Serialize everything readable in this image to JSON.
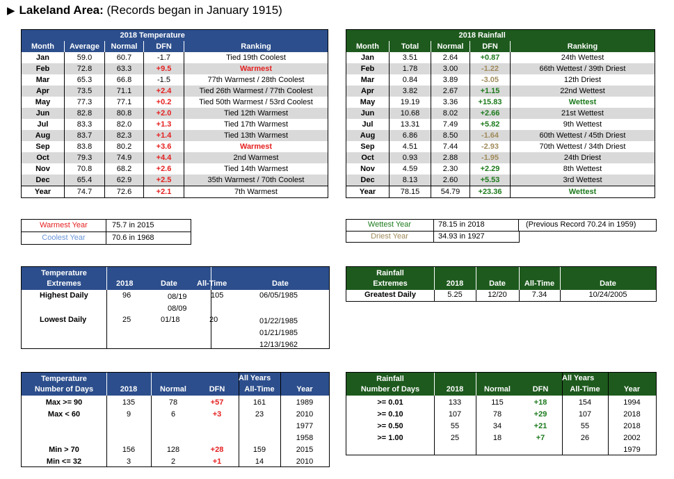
{
  "title": {
    "bold": "Lakeland Area:",
    "rest": " (Records began in January 1915)"
  },
  "temp": {
    "header": "2018 Temperature",
    "cols": [
      "Month",
      "Average",
      "Normal",
      "DFN",
      "Ranking"
    ],
    "rows": [
      [
        "Jan",
        "59.0",
        "60.7",
        "-1.7",
        "Tied 19th Coolest"
      ],
      [
        "Feb",
        "72.8",
        "63.3",
        "+9.5",
        "Warmest"
      ],
      [
        "Mar",
        "65.3",
        "66.8",
        "-1.5",
        "77th Warmest / 28th Coolest"
      ],
      [
        "Apr",
        "73.5",
        "71.1",
        "+2.4",
        "Tied 26th Warmest / 77th Coolest"
      ],
      [
        "May",
        "77.3",
        "77.1",
        "+0.2",
        "Tied 50th Warmest / 53rd Coolest"
      ],
      [
        "Jun",
        "82.8",
        "80.8",
        "+2.0",
        "Tied 12th Warmest"
      ],
      [
        "Jul",
        "83.3",
        "82.0",
        "+1.3",
        "Tied 17th Warmest"
      ],
      [
        "Aug",
        "83.7",
        "82.3",
        "+1.4",
        "Tied 13th Warmest"
      ],
      [
        "Sep",
        "83.8",
        "80.2",
        "+3.6",
        "Warmest"
      ],
      [
        "Oct",
        "79.3",
        "74.9",
        "+4.4",
        "2nd Warmest"
      ],
      [
        "Nov",
        "70.8",
        "68.2",
        "+2.6",
        "Tied 14th Warmest"
      ],
      [
        "Dec",
        "65.4",
        "62.9",
        "+2.5",
        "35th Warmest / 70th Coolest"
      ],
      [
        "Year",
        "74.7",
        "72.6",
        "+2.1",
        "7th Warmest"
      ]
    ]
  },
  "rain": {
    "header": "2018 Rainfall",
    "cols": [
      "Month",
      "Total",
      "Normal",
      "DFN",
      "Ranking"
    ],
    "rows": [
      [
        "Jan",
        "3.51",
        "2.64",
        "+0.87",
        "24th Wettest"
      ],
      [
        "Feb",
        "1.78",
        "3.00",
        "-1.22",
        "66th Wettest / 39th Driest"
      ],
      [
        "Mar",
        "0.84",
        "3.89",
        "-3.05",
        "12th Driest"
      ],
      [
        "Apr",
        "3.82",
        "2.67",
        "+1.15",
        "22nd Wettest"
      ],
      [
        "May",
        "19.19",
        "3.36",
        "+15.83",
        "Wettest"
      ],
      [
        "Jun",
        "10.68",
        "8.02",
        "+2.66",
        "21st Wettest"
      ],
      [
        "Jul",
        "13.31",
        "7.49",
        "+5.82",
        "9th Wettest"
      ],
      [
        "Aug",
        "6.86",
        "8.50",
        "-1.64",
        "60th Wettest / 45th Driest"
      ],
      [
        "Sep",
        "4.51",
        "7.44",
        "-2.93",
        "70th Wettest / 34th Driest"
      ],
      [
        "Oct",
        "0.93",
        "2.88",
        "-1.95",
        "24th Driest"
      ],
      [
        "Nov",
        "4.59",
        "2.30",
        "+2.29",
        "8th Wettest"
      ],
      [
        "Dec",
        "8.13",
        "2.60",
        "+5.53",
        "3rd Wettest"
      ],
      [
        "Year",
        "78.15",
        "54.79",
        "+23.36",
        "Wettest"
      ]
    ]
  },
  "tempyear": {
    "warm_label": "Warmest Year",
    "warm_val": "75.7 in 2015",
    "cool_label": "Coolest Year",
    "cool_val": "70.6 in 1968"
  },
  "rainyear": {
    "wet_label": "Wettest Year",
    "wet_val": "78.15 in 2018",
    "wet_note": "(Previous Record 70.24 in 1959)",
    "dry_label": "Driest Year",
    "dry_val": "34.93 in 1927"
  },
  "tempext": {
    "h1": "Temperature",
    "h2": "Extremes",
    "cols": [
      "2018",
      "Date",
      "All-Time",
      "Date"
    ],
    "high": {
      "label": "Highest Daily",
      "val": "96",
      "dates": [
        "08/19",
        "08/09"
      ],
      "at": "105",
      "atdates": [
        "06/05/1985"
      ]
    },
    "low": {
      "label": "Lowest Daily",
      "val": "25",
      "dates": [
        "01/18"
      ],
      "at": "20",
      "atdates": [
        "01/22/1985",
        "01/21/1985",
        "12/13/1962"
      ]
    }
  },
  "rainext": {
    "h1": "Rainfall",
    "h2": "Extremes",
    "cols": [
      "2018",
      "Date",
      "All-Time",
      "Date"
    ],
    "row": {
      "label": "Greatest Daily",
      "val": "5.25",
      "date": "12/20",
      "at": "7.34",
      "atdate": "10/24/2005"
    }
  },
  "tempdays": {
    "h1": "Temperature",
    "h2": "Number of Days",
    "allyears": "All Years",
    "cols": [
      "2018",
      "Normal",
      "DFN",
      "All-Time",
      "Year"
    ],
    "rows": [
      {
        "label": "Max >= 90",
        "v": "135",
        "n": "78",
        "d": "+57",
        "at": "161",
        "yrs": [
          "1989"
        ]
      },
      {
        "label": "Max < 60",
        "v": "9",
        "n": "6",
        "d": "+3",
        "at": "23",
        "yrs": [
          "2010",
          "1977",
          "1958"
        ]
      },
      {
        "label": "Min > 70",
        "v": "156",
        "n": "128",
        "d": "+28",
        "at": "159",
        "yrs": [
          "2015"
        ]
      },
      {
        "label": "Min <= 32",
        "v": "3",
        "n": "2",
        "d": "+1",
        "at": "14",
        "yrs": [
          "2010"
        ]
      }
    ]
  },
  "raindays": {
    "h1": "Rainfall",
    "h2": "Number of Days",
    "allyears": "All Years",
    "cols": [
      "2018",
      "Normal",
      "DFN",
      "All-Time",
      "Year"
    ],
    "rows": [
      {
        "label": ">= 0.01",
        "v": "133",
        "n": "115",
        "d": "+18",
        "at": "154",
        "yrs": [
          "1994"
        ]
      },
      {
        "label": ">= 0.10",
        "v": "107",
        "n": "78",
        "d": "+29",
        "at": "107",
        "yrs": [
          "2018"
        ]
      },
      {
        "label": ">= 0.50",
        "v": "55",
        "n": "34",
        "d": "+21",
        "at": "55",
        "yrs": [
          "2018"
        ]
      },
      {
        "label": ">= 1.00",
        "v": "25",
        "n": "18",
        "d": "+7",
        "at": "26",
        "yrs": [
          "2002",
          "1979"
        ]
      }
    ]
  }
}
